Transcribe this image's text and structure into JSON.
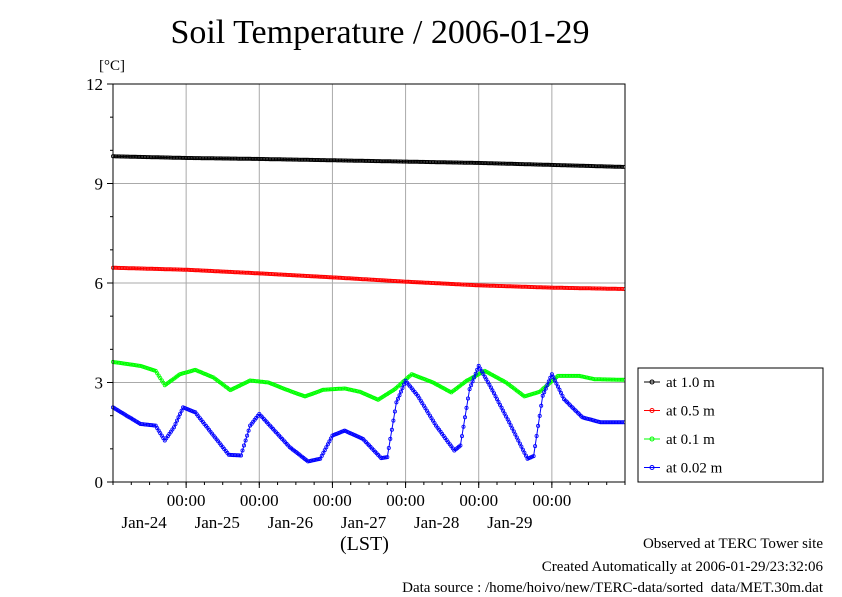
{
  "chart_data": {
    "type": "line",
    "title": "Soil Temperature / 2006-01-29",
    "ylabel": "[°C]",
    "xlabel": "(LST)",
    "ylim": [
      0,
      12
    ],
    "yticks": [
      0,
      3,
      6,
      9,
      12
    ],
    "xlim_days": [
      "2006-01-23 00:00",
      "2006-01-30 00:00"
    ],
    "xticks": [
      {
        "time": "00:00",
        "date": "Jan-24"
      },
      {
        "time": "00:00",
        "date": "Jan-25"
      },
      {
        "time": "00:00",
        "date": "Jan-26"
      },
      {
        "time": "00:00",
        "date": "Jan-27"
      },
      {
        "time": "00:00",
        "date": "Jan-28"
      },
      {
        "time": "00:00",
        "date": "Jan-29"
      }
    ],
    "grid": true,
    "legend_position": "right",
    "series": [
      {
        "name": "at 1.0 m",
        "color": "#000000",
        "x": [
          "2006-01-23 00:00",
          "2006-01-24 00:00",
          "2006-01-25 00:00",
          "2006-01-26 00:00",
          "2006-01-27 00:00",
          "2006-01-28 00:00",
          "2006-01-29 00:00",
          "2006-01-29 23:30"
        ],
        "y": [
          9.82,
          9.77,
          9.74,
          9.7,
          9.66,
          9.62,
          9.56,
          9.5
        ]
      },
      {
        "name": "at 0.5 m",
        "color": "#ff0000",
        "x": [
          "2006-01-23 00:00",
          "2006-01-24 00:00",
          "2006-01-25 00:00",
          "2006-01-26 00:00",
          "2006-01-27 00:00",
          "2006-01-28 00:00",
          "2006-01-29 00:00",
          "2006-01-29 23:30"
        ],
        "y": [
          6.46,
          6.4,
          6.29,
          6.17,
          6.04,
          5.93,
          5.86,
          5.82
        ]
      },
      {
        "name": "at 0.1 m",
        "color": "#00ff00",
        "x": [
          "2006-01-23 00:00",
          "2006-01-23 09:00",
          "2006-01-23 14:00",
          "2006-01-23 17:00",
          "2006-01-23 22:00",
          "2006-01-24 03:00",
          "2006-01-24 09:00",
          "2006-01-24 14:30",
          "2006-01-24 21:00",
          "2006-01-25 03:00",
          "2006-01-25 09:00",
          "2006-01-25 15:00",
          "2006-01-25 21:00",
          "2006-01-26 04:00",
          "2006-01-26 09:00",
          "2006-01-26 15:00",
          "2006-01-26 20:30",
          "2006-01-27 02:00",
          "2006-01-27 09:00",
          "2006-01-27 15:00",
          "2006-01-27 20:00",
          "2006-01-28 02:00",
          "2006-01-28 09:00",
          "2006-01-28 15:00",
          "2006-01-28 20:00",
          "2006-01-29 02:00",
          "2006-01-29 09:00",
          "2006-01-29 14:00",
          "2006-01-29 23:30"
        ],
        "y": [
          3.62,
          3.5,
          3.35,
          2.92,
          3.25,
          3.38,
          3.15,
          2.77,
          3.06,
          3.0,
          2.78,
          2.58,
          2.78,
          2.82,
          2.72,
          2.48,
          2.8,
          3.25,
          3.0,
          2.7,
          3.05,
          3.35,
          3.0,
          2.58,
          2.72,
          3.2,
          3.2,
          3.1,
          3.08
        ]
      },
      {
        "name": "at 0.02 m",
        "color": "#0000ff",
        "x": [
          "2006-01-23 00:00",
          "2006-01-23 09:00",
          "2006-01-23 14:00",
          "2006-01-23 17:00",
          "2006-01-23 20:00",
          "2006-01-23 23:00",
          "2006-01-24 03:00",
          "2006-01-24 09:00",
          "2006-01-24 14:00",
          "2006-01-24 18:00",
          "2006-01-24 21:00",
          "2006-01-25 00:00",
          "2006-01-25 04:00",
          "2006-01-25 10:00",
          "2006-01-25 16:00",
          "2006-01-25 20:00",
          "2006-01-26 00:00",
          "2006-01-26 04:00",
          "2006-01-26 10:00",
          "2006-01-26 16:00",
          "2006-01-26 18:00",
          "2006-01-26 21:00",
          "2006-01-27 00:00",
          "2006-01-27 04:00",
          "2006-01-27 10:00",
          "2006-01-27 16:00",
          "2006-01-27 18:00",
          "2006-01-27 21:00",
          "2006-01-28 00:00",
          "2006-01-28 04:00",
          "2006-01-28 10:00",
          "2006-01-28 16:00",
          "2006-01-28 18:00",
          "2006-01-28 21:00",
          "2006-01-29 00:00",
          "2006-01-29 04:00",
          "2006-01-29 10:00",
          "2006-01-29 16:00",
          "2006-01-29 23:30"
        ],
        "y": [
          2.25,
          1.75,
          1.7,
          1.25,
          1.65,
          2.25,
          2.1,
          1.4,
          0.82,
          0.8,
          1.7,
          2.05,
          1.65,
          1.05,
          0.62,
          0.7,
          1.4,
          1.55,
          1.3,
          0.72,
          0.75,
          2.4,
          3.05,
          2.6,
          1.7,
          0.95,
          1.1,
          2.8,
          3.5,
          2.85,
          1.8,
          0.7,
          0.78,
          2.6,
          3.25,
          2.5,
          1.95,
          1.8,
          1.8
        ]
      }
    ]
  },
  "footer": {
    "line1": "Observed at TERC Tower site",
    "line2": "Created Automatically at 2006-01-29/23:32:06",
    "line3": "Data source : /home/hoivo/new/TERC-data/sorted  data/MET.30m.dat"
  }
}
